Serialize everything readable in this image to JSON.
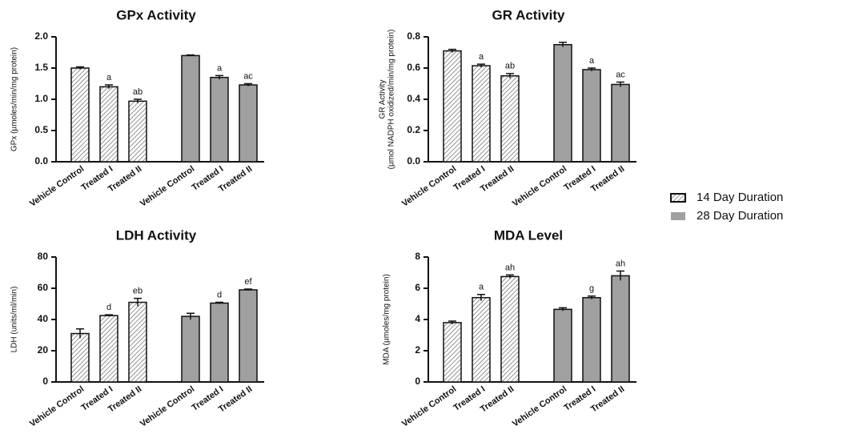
{
  "legend": [
    {
      "name": "14 Day Duration",
      "color": "#ffffff",
      "pattern": "hatched"
    },
    {
      "name": "28 Day Duration",
      "color": "#a0a0a0"
    }
  ],
  "chart_data": [
    {
      "type": "bar",
      "title": "GPx Activity",
      "ylabel": "GPx (µmoles/min/mg protein)",
      "categories": [
        "Vehicle Control",
        "Treated I",
        "Treated II"
      ],
      "series": [
        {
          "values": [
            1.5,
            1.2,
            0.97
          ],
          "errors": [
            0.02,
            0.03,
            0.03
          ],
          "annotations": [
            null,
            "a",
            "ab"
          ]
        },
        {
          "values": [
            1.7,
            1.35,
            1.23
          ],
          "errors": [
            0.01,
            0.03,
            0.02
          ],
          "annotations": [
            null,
            "a",
            "ac"
          ]
        }
      ],
      "ylim": [
        0,
        2
      ],
      "yticks": [
        {
          "value": 0,
          "label": "0.0"
        },
        0.5,
        {
          "value": 1,
          "label": "1.0"
        },
        1.5,
        {
          "value": 2,
          "label": "2.0"
        }
      ]
    },
    {
      "type": "bar",
      "title": "GR Activity",
      "ylabel": [
        "GR Activity",
        "(µmol NADPH oxidized/min/mg protein)"
      ],
      "categories": [
        "Vehicle Control",
        "Treated I",
        "Treated II"
      ],
      "series": [
        {
          "values": [
            0.71,
            0.615,
            0.55
          ],
          "errors": [
            0.01,
            0.01,
            0.015
          ],
          "annotations": [
            null,
            "a",
            "ab"
          ]
        },
        {
          "values": [
            0.75,
            0.59,
            0.495
          ],
          "errors": [
            0.015,
            0.01,
            0.015
          ],
          "annotations": [
            null,
            "a",
            "ac"
          ]
        }
      ],
      "ylim": [
        0,
        0.8
      ],
      "yticks": [
        {
          "value": 0,
          "label": "0.0"
        },
        0.2,
        0.4,
        0.6,
        0.8
      ]
    },
    {
      "type": "bar",
      "title": "LDH Activity",
      "ylabel": "LDH (units/ml/min)",
      "categories": [
        "Vehicle Control",
        "Treated I",
        "Treated II"
      ],
      "series": [
        {
          "values": [
            31,
            42.5,
            51
          ],
          "errors": [
            3,
            0.5,
            2.5
          ],
          "annotations": [
            null,
            "d",
            "eb"
          ]
        },
        {
          "values": [
            42,
            50.5,
            59
          ],
          "errors": [
            2,
            0.5,
            0.5
          ],
          "annotations": [
            null,
            "d",
            "ef"
          ]
        }
      ],
      "ylim": [
        0,
        80
      ],
      "yticks": [
        0,
        20,
        40,
        60,
        80
      ]
    },
    {
      "type": "bar",
      "title": "MDA Level",
      "ylabel": "MDA (µmoles/mg protein)",
      "categories": [
        "Vehicle Control",
        "Treated I",
        "Treated II"
      ],
      "series": [
        {
          "values": [
            3.8,
            5.4,
            6.75
          ],
          "errors": [
            0.1,
            0.2,
            0.1
          ],
          "annotations": [
            null,
            "a",
            "ah"
          ]
        },
        {
          "values": [
            4.65,
            5.4,
            6.8
          ],
          "errors": [
            0.1,
            0.1,
            0.3
          ],
          "annotations": [
            null,
            "g",
            "ah"
          ]
        }
      ],
      "ylim": [
        0,
        8
      ],
      "yticks": [
        0,
        2,
        4,
        6,
        8
      ]
    }
  ]
}
